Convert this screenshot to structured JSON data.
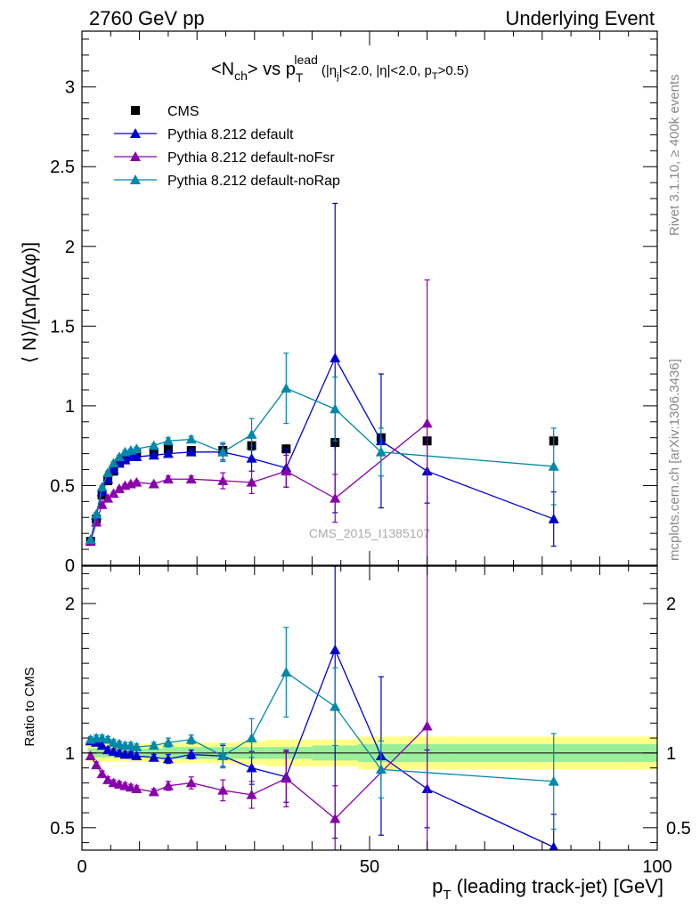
{
  "header": {
    "left": "2760 GeV pp",
    "right": "Underlying Event"
  },
  "side_labels": {
    "rivet": "Rivet 3.1.10, ≥ 400k events",
    "mcplots": "mcplots.cern.ch [arXiv:1306.3436]"
  },
  "main_plot": {
    "title_parts": [
      "<N",
      "ch",
      "> vs p",
      "T",
      "lead",
      "(|η",
      "j",
      "|<2.0, |η|<2.0, p",
      "T",
      ">0.5)"
    ],
    "ylabel": "⟨ N⟩/[ΔηΔ(Δφ)]",
    "watermark": "CMS_2015_I1385107",
    "ylim": [
      0,
      3.35
    ],
    "yticks": [
      0,
      0.5,
      1,
      1.5,
      2,
      2.5,
      3
    ],
    "ytick_labels": [
      "0",
      "0.5",
      "1",
      "1.5",
      "2",
      "2.5",
      "3"
    ]
  },
  "ratio_plot": {
    "ylabel": "Ratio to CMS",
    "ylim": [
      0.35,
      2.25
    ],
    "yticks": [
      0.5,
      1,
      2
    ],
    "ytick_labels_left": [
      "0.5",
      "1",
      "2"
    ],
    "ytick_labels_right": [
      "0.5",
      "1",
      "2"
    ]
  },
  "x_axis": {
    "xlim": [
      0,
      100
    ],
    "xticks": [
      0,
      50,
      100
    ],
    "xtick_labels": [
      "0",
      "50",
      "100"
    ],
    "xlabel_main": "p",
    "xlabel_sub": "T",
    "xlabel_rest": " (leading track-jet) [GeV]"
  },
  "legend": {
    "entries": [
      "CMS",
      "Pythia 8.212 default",
      "Pythia 8.212 default-noFsr",
      "Pythia 8.212 default-noRap"
    ]
  },
  "chart_data": {
    "type": "scatter",
    "xlim": [
      0,
      100
    ],
    "ylim": [
      0,
      3.35
    ],
    "ratio_ylim": [
      0.35,
      2.25
    ],
    "grid": false,
    "legend_position": "top-left",
    "x": [
      1.5,
      2.5,
      3.5,
      4.5,
      5.5,
      6.5,
      8,
      10,
      12.5,
      15,
      17.5,
      20,
      25,
      30,
      35,
      40,
      45,
      50,
      55
    ],
    "x_plot": [
      1.5,
      2.5,
      3.5,
      4.5,
      5.5,
      6.5,
      7.5,
      8.5,
      9.5,
      12.5,
      15,
      17.5,
      20,
      25,
      30,
      35,
      45,
      50,
      60,
      80
    ],
    "cms": {
      "name": "CMS",
      "color": "#000000",
      "x": [
        1.5,
        2.5,
        3.5,
        4.5,
        5.5,
        6.5,
        7.5,
        8.5,
        9.5,
        12.5,
        15,
        19,
        24.5,
        29.5,
        35.5,
        44,
        52,
        60,
        82
      ],
      "y": [
        0.15,
        0.29,
        0.44,
        0.53,
        0.59,
        0.64,
        0.67,
        0.69,
        0.7,
        0.71,
        0.73,
        0.72,
        0.72,
        0.75,
        0.73,
        0.77,
        0.8,
        0.78,
        0.78
      ],
      "err": [
        0.01,
        0.01,
        0.01,
        0.01,
        0.01,
        0.01,
        0.01,
        0.01,
        0.01,
        0.01,
        0.02,
        0.02,
        0.02,
        0.03,
        0.03,
        0.04,
        0.05,
        0.05,
        0.04
      ]
    },
    "series": [
      {
        "name": "Pythia 8.212 default",
        "color": "#0000cc",
        "x": [
          1.5,
          2.5,
          3.5,
          4.5,
          5.5,
          6.5,
          7.5,
          8.5,
          9.5,
          12.5,
          15,
          19,
          24.5,
          29.5,
          35.5,
          44,
          52,
          60,
          82
        ],
        "y": [
          0.16,
          0.31,
          0.46,
          0.54,
          0.6,
          0.64,
          0.66,
          0.68,
          0.68,
          0.69,
          0.7,
          0.71,
          0.71,
          0.67,
          0.61,
          1.3,
          0.78,
          0.59,
          0.29
        ],
        "err": [
          0.01,
          0.01,
          0.01,
          0.01,
          0.01,
          0.01,
          0.01,
          0.01,
          0.01,
          0.01,
          0.02,
          0.02,
          0.05,
          0.08,
          0.12,
          0.97,
          0.42,
          0.2,
          0.17
        ],
        "ratio": [
          1.08,
          1.07,
          1.05,
          1.02,
          1.01,
          1.0,
          0.99,
          0.99,
          0.98,
          0.97,
          0.96,
          0.99,
          0.98,
          0.9,
          0.84,
          1.69,
          0.98,
          0.76,
          0.37
        ],
        "ratio_err": [
          0.02,
          0.02,
          0.02,
          0.02,
          0.02,
          0.02,
          0.02,
          0.02,
          0.02,
          0.02,
          0.03,
          0.03,
          0.07,
          0.11,
          0.17,
          1.26,
          0.53,
          0.26,
          0.22
        ]
      },
      {
        "name": "Pythia 8.212 default-noFsr",
        "color": "#8800aa",
        "x": [
          1.5,
          2.5,
          3.5,
          4.5,
          5.5,
          6.5,
          7.5,
          8.5,
          9.5,
          12.5,
          15,
          19,
          24.5,
          29.5,
          35.5,
          44,
          60
        ],
        "y": [
          0.15,
          0.27,
          0.38,
          0.42,
          0.45,
          0.48,
          0.5,
          0.51,
          0.52,
          0.51,
          0.54,
          0.54,
          0.53,
          0.52,
          0.59,
          0.42,
          0.89
        ],
        "err": [
          0.01,
          0.01,
          0.01,
          0.01,
          0.01,
          0.01,
          0.01,
          0.01,
          0.01,
          0.01,
          0.02,
          0.02,
          0.05,
          0.07,
          0.1,
          0.15,
          0.9
        ],
        "ratio": [
          0.98,
          0.92,
          0.86,
          0.82,
          0.8,
          0.79,
          0.78,
          0.77,
          0.76,
          0.74,
          0.78,
          0.8,
          0.75,
          0.72,
          0.83,
          0.56,
          1.18
        ],
        "ratio_err": [
          0.02,
          0.02,
          0.02,
          0.02,
          0.02,
          0.02,
          0.02,
          0.02,
          0.02,
          0.02,
          0.03,
          0.04,
          0.07,
          0.09,
          0.19,
          0.22,
          1.12
        ]
      },
      {
        "name": "Pythia 8.212 default-noRap",
        "color": "#0088aa",
        "x": [
          1.5,
          2.5,
          3.5,
          4.5,
          5.5,
          6.5,
          7.5,
          8.5,
          9.5,
          12.5,
          15,
          19,
          24.5,
          29.5,
          35.5,
          44,
          52,
          82
        ],
        "y": [
          0.16,
          0.32,
          0.49,
          0.58,
          0.64,
          0.68,
          0.71,
          0.72,
          0.73,
          0.75,
          0.78,
          0.79,
          0.71,
          0.82,
          1.11,
          0.98,
          0.71,
          0.62
        ],
        "err": [
          0.01,
          0.01,
          0.01,
          0.01,
          0.01,
          0.01,
          0.01,
          0.01,
          0.01,
          0.01,
          0.02,
          0.02,
          0.06,
          0.1,
          0.22,
          0.2,
          0.15,
          0.24
        ],
        "ratio": [
          1.09,
          1.1,
          1.1,
          1.09,
          1.07,
          1.06,
          1.05,
          1.05,
          1.04,
          1.05,
          1.07,
          1.09,
          0.98,
          1.1,
          1.54,
          1.31,
          0.89,
          0.81
        ],
        "ratio_err": [
          0.02,
          0.02,
          0.02,
          0.02,
          0.02,
          0.02,
          0.02,
          0.02,
          0.02,
          0.02,
          0.03,
          0.03,
          0.08,
          0.13,
          0.3,
          0.26,
          0.19,
          0.32
        ]
      }
    ]
  }
}
